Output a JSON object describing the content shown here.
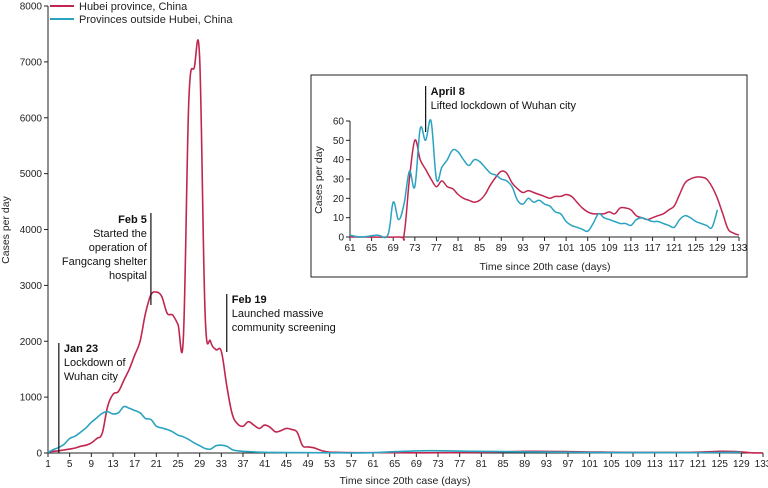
{
  "chart_data": [
    {
      "type": "line",
      "title": "",
      "xlabel": "Time since 20th case (days)",
      "ylabel": "Cases per day",
      "xlim": [
        1,
        133
      ],
      "ylim": [
        0,
        8000
      ],
      "xticks": [
        1,
        5,
        9,
        13,
        17,
        21,
        25,
        29,
        33,
        37,
        41,
        45,
        49,
        53,
        57,
        61,
        65,
        69,
        73,
        77,
        81,
        85,
        89,
        93,
        97,
        101,
        105,
        109,
        113,
        117,
        121,
        125,
        129,
        133
      ],
      "yticks": [
        0,
        1000,
        2000,
        3000,
        4000,
        5000,
        6000,
        7000,
        8000
      ],
      "legend": {
        "placement": "top-left"
      },
      "series": [
        {
          "name": "Hubei province, China",
          "color": "#c0264f",
          "points": [
            [
              1,
              20
            ],
            [
              2,
              30
            ],
            [
              3,
              40
            ],
            [
              4,
              55
            ],
            [
              5,
              70
            ],
            [
              6,
              90
            ],
            [
              7,
              120
            ],
            [
              8,
              140
            ],
            [
              9,
              180
            ],
            [
              10,
              260
            ],
            [
              11,
              350
            ],
            [
              12,
              830
            ],
            [
              13,
              1050
            ],
            [
              14,
              1100
            ],
            [
              15,
              1300
            ],
            [
              16,
              1500
            ],
            [
              17,
              1750
            ],
            [
              18,
              2000
            ],
            [
              19,
              2500
            ],
            [
              20,
              2830
            ],
            [
              21,
              2880
            ],
            [
              22,
              2800
            ],
            [
              23,
              2500
            ],
            [
              24,
              2470
            ],
            [
              25,
              2300
            ],
            [
              26,
              2080
            ],
            [
              27,
              6300
            ],
            [
              28,
              6900
            ],
            [
              29,
              7050
            ],
            [
              30,
              2500
            ],
            [
              31,
              2000
            ],
            [
              32,
              1850
            ],
            [
              33,
              1820
            ],
            [
              34,
              1200
            ],
            [
              35,
              700
            ],
            [
              36,
              520
            ],
            [
              37,
              480
            ],
            [
              38,
              560
            ],
            [
              39,
              500
            ],
            [
              40,
              440
            ],
            [
              41,
              500
            ],
            [
              42,
              460
            ],
            [
              43,
              380
            ],
            [
              44,
              400
            ],
            [
              45,
              440
            ],
            [
              46,
              420
            ],
            [
              47,
              370
            ],
            [
              48,
              130
            ],
            [
              49,
              110
            ],
            [
              50,
              95
            ],
            [
              51,
              60
            ],
            [
              52,
              30
            ],
            [
              53,
              15
            ],
            [
              55,
              10
            ],
            [
              60,
              5
            ],
            [
              70,
              3
            ],
            [
              80,
              10
            ],
            [
              90,
              30
            ],
            [
              100,
              20
            ],
            [
              110,
              10
            ],
            [
              120,
              12
            ],
            [
              125,
              30
            ],
            [
              128,
              25
            ],
            [
              131,
              4
            ],
            [
              133,
              1
            ]
          ]
        },
        {
          "name": "Provinces outside Hubei, China",
          "color": "#2aa3c0",
          "points": [
            [
              1,
              10
            ],
            [
              2,
              60
            ],
            [
              3,
              100
            ],
            [
              4,
              160
            ],
            [
              5,
              260
            ],
            [
              6,
              300
            ],
            [
              7,
              370
            ],
            [
              8,
              450
            ],
            [
              9,
              550
            ],
            [
              10,
              630
            ],
            [
              11,
              710
            ],
            [
              12,
              740
            ],
            [
              13,
              700
            ],
            [
              14,
              720
            ],
            [
              15,
              830
            ],
            [
              16,
              800
            ],
            [
              17,
              760
            ],
            [
              18,
              720
            ],
            [
              19,
              620
            ],
            [
              20,
              600
            ],
            [
              21,
              480
            ],
            [
              22,
              450
            ],
            [
              23,
              420
            ],
            [
              24,
              380
            ],
            [
              25,
              320
            ],
            [
              26,
              290
            ],
            [
              27,
              240
            ],
            [
              28,
              180
            ],
            [
              29,
              130
            ],
            [
              30,
              80
            ],
            [
              31,
              70
            ],
            [
              32,
              130
            ],
            [
              33,
              140
            ],
            [
              34,
              120
            ],
            [
              35,
              60
            ],
            [
              36,
              40
            ],
            [
              37,
              30
            ],
            [
              38,
              25
            ],
            [
              39,
              20
            ],
            [
              40,
              15
            ],
            [
              42,
              10
            ],
            [
              45,
              8
            ],
            [
              50,
              5
            ],
            [
              55,
              4
            ],
            [
              60,
              3
            ],
            [
              70,
              40
            ],
            [
              80,
              30
            ],
            [
              90,
              20
            ],
            [
              100,
              10
            ],
            [
              110,
              8
            ],
            [
              120,
              6
            ],
            [
              129,
              12
            ]
          ]
        }
      ],
      "annotations": [
        {
          "x": 3,
          "title": "Jan 23",
          "lines": [
            "Lockdown of",
            "Wuhan city"
          ]
        },
        {
          "x": 20,
          "title": "Feb 5",
          "lines": [
            "Started the",
            "operation of",
            "Fangcang shelter",
            "hospital"
          ]
        },
        {
          "x": 34,
          "title": "Feb 19",
          "lines": [
            "Launched massive",
            "community screening"
          ]
        }
      ]
    },
    {
      "type": "line",
      "title": "",
      "xlabel": "Time since 20th case (days)",
      "ylabel": "Cases per day",
      "xlim": [
        61,
        133
      ],
      "ylim": [
        0,
        60
      ],
      "xticks": [
        61,
        65,
        69,
        73,
        77,
        81,
        85,
        89,
        93,
        97,
        101,
        105,
        109,
        113,
        117,
        121,
        125,
        129,
        133
      ],
      "yticks": [
        0,
        10,
        20,
        30,
        40,
        50,
        60
      ],
      "series": [
        {
          "name": "Hubei province, China",
          "color": "#c0264f",
          "points": [
            [
              61,
              0
            ],
            [
              70,
              0
            ],
            [
              71,
              1
            ],
            [
              72,
              30
            ],
            [
              73,
              50
            ],
            [
              74,
              40
            ],
            [
              75,
              35
            ],
            [
              76,
              30
            ],
            [
              77,
              26
            ],
            [
              78,
              29
            ],
            [
              79,
              26
            ],
            [
              80,
              25
            ],
            [
              81,
              22
            ],
            [
              82,
              20
            ],
            [
              83,
              19
            ],
            [
              84,
              18
            ],
            [
              85,
              19
            ],
            [
              86,
              22
            ],
            [
              87,
              27
            ],
            [
              88,
              31
            ],
            [
              89,
              34
            ],
            [
              90,
              33
            ],
            [
              91,
              28
            ],
            [
              92,
              25
            ],
            [
              93,
              23
            ],
            [
              94,
              24
            ],
            [
              95,
              23
            ],
            [
              96,
              22
            ],
            [
              97,
              21
            ],
            [
              98,
              20
            ],
            [
              99,
              21
            ],
            [
              100,
              21
            ],
            [
              101,
              22
            ],
            [
              102,
              21
            ],
            [
              103,
              18
            ],
            [
              104,
              15
            ],
            [
              105,
              13
            ],
            [
              106,
              12
            ],
            [
              107,
              12
            ],
            [
              108,
              12
            ],
            [
              109,
              13
            ],
            [
              110,
              12
            ],
            [
              111,
              15
            ],
            [
              112,
              15
            ],
            [
              113,
              14
            ],
            [
              114,
              11
            ],
            [
              115,
              10
            ],
            [
              116,
              9
            ],
            [
              117,
              10
            ],
            [
              118,
              11
            ],
            [
              119,
              12
            ],
            [
              120,
              14
            ],
            [
              121,
              16
            ],
            [
              122,
              22
            ],
            [
              123,
              28
            ],
            [
              124,
              30
            ],
            [
              125,
              31
            ],
            [
              126,
              31
            ],
            [
              127,
              30
            ],
            [
              128,
              26
            ],
            [
              129,
              20
            ],
            [
              130,
              12
            ],
            [
              131,
              4
            ],
            [
              132,
              2
            ],
            [
              133,
              1
            ]
          ]
        },
        {
          "name": "Provinces outside Hubei, China",
          "color": "#2aa3c0",
          "points": [
            [
              61,
              1
            ],
            [
              63,
              0
            ],
            [
              66,
              1
            ],
            [
              68,
              1
            ],
            [
              69,
              18
            ],
            [
              70,
              9
            ],
            [
              71,
              17
            ],
            [
              72,
              34
            ],
            [
              73,
              26
            ],
            [
              74,
              56
            ],
            [
              75,
              50
            ],
            [
              76,
              60
            ],
            [
              77,
              30
            ],
            [
              78,
              36
            ],
            [
              79,
              40
            ],
            [
              80,
              45
            ],
            [
              81,
              44
            ],
            [
              82,
              40
            ],
            [
              83,
              37
            ],
            [
              84,
              40
            ],
            [
              85,
              39
            ],
            [
              86,
              36
            ],
            [
              87,
              33
            ],
            [
              88,
              32
            ],
            [
              89,
              30
            ],
            [
              90,
              29
            ],
            [
              91,
              26
            ],
            [
              92,
              19
            ],
            [
              93,
              17
            ],
            [
              94,
              20
            ],
            [
              95,
              18
            ],
            [
              96,
              19
            ],
            [
              97,
              17
            ],
            [
              98,
              16
            ],
            [
              99,
              13
            ],
            [
              100,
              12
            ],
            [
              101,
              8
            ],
            [
              102,
              6
            ],
            [
              103,
              5
            ],
            [
              104,
              4
            ],
            [
              105,
              3
            ],
            [
              106,
              7
            ],
            [
              107,
              12
            ],
            [
              108,
              10
            ],
            [
              109,
              9
            ],
            [
              110,
              8
            ],
            [
              111,
              7
            ],
            [
              112,
              7
            ],
            [
              113,
              6
            ],
            [
              114,
              9
            ],
            [
              115,
              10
            ],
            [
              116,
              9
            ],
            [
              117,
              8
            ],
            [
              118,
              8
            ],
            [
              119,
              7
            ],
            [
              120,
              6
            ],
            [
              121,
              5
            ],
            [
              122,
              9
            ],
            [
              123,
              11
            ],
            [
              124,
              10
            ],
            [
              125,
              8
            ],
            [
              126,
              7
            ],
            [
              127,
              6
            ],
            [
              128,
              5
            ],
            [
              129,
              14
            ]
          ]
        }
      ],
      "annotations": [
        {
          "x": 75,
          "title": "April 8",
          "lines": [
            "Lifted lockdown of Wuhan city"
          ]
        }
      ]
    }
  ]
}
